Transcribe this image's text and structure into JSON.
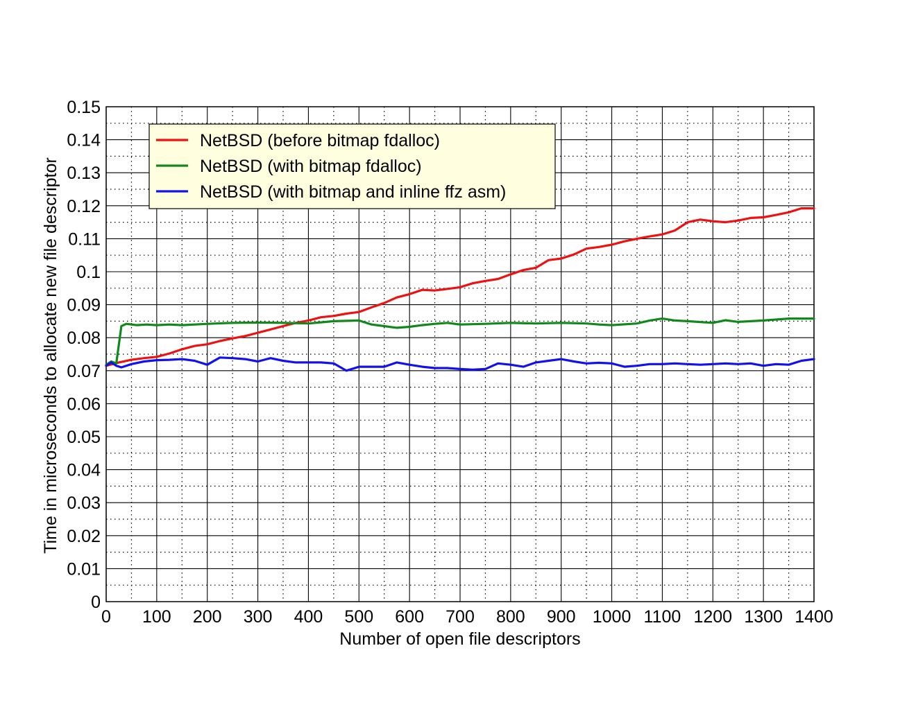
{
  "chart_data": {
    "type": "line",
    "title": "",
    "xlabel": "Number of open file descriptors",
    "ylabel": "Time in microseconds to allocate new file descriptor",
    "xlim": [
      0,
      1400
    ],
    "ylim": [
      0,
      0.15
    ],
    "xticks": [
      0,
      100,
      200,
      300,
      400,
      500,
      600,
      700,
      800,
      900,
      1000,
      1100,
      1200,
      1300,
      1400
    ],
    "xtick_labels": [
      "0",
      "100",
      "200",
      "300",
      "400",
      "500",
      "600",
      "700",
      "800",
      "900",
      "1000",
      "1100",
      "1200",
      "1300",
      "1400"
    ],
    "yticks": [
      0,
      0.01,
      0.02,
      0.03,
      0.04,
      0.05,
      0.06,
      0.07,
      0.08,
      0.09,
      0.1,
      0.11,
      0.12,
      0.13,
      0.14,
      0.15
    ],
    "ytick_labels": [
      "0",
      "0.01",
      "0.02",
      "0.03",
      "0.04",
      "0.05",
      "0.06",
      "0.07",
      "0.08",
      "0.09",
      "0.1",
      "0.11",
      "0.12",
      "0.13",
      "0.14",
      "0.15"
    ],
    "grid": true,
    "legend_position": "top-left",
    "series": [
      {
        "name": "NetBSD (before bitmap fdalloc)",
        "color": "#ee1111",
        "x": [
          0,
          25,
          50,
          75,
          100,
          125,
          150,
          175,
          200,
          225,
          250,
          275,
          300,
          325,
          350,
          375,
          400,
          425,
          450,
          475,
          500,
          525,
          550,
          575,
          600,
          625,
          650,
          675,
          700,
          725,
          750,
          775,
          800,
          825,
          850,
          875,
          900,
          925,
          950,
          975,
          1000,
          1025,
          1050,
          1075,
          1100,
          1125,
          1150,
          1175,
          1200,
          1225,
          1250,
          1275,
          1300,
          1325,
          1350,
          1375,
          1400
        ],
        "y": [
          0.0715,
          0.0725,
          0.0733,
          0.0738,
          0.0742,
          0.0752,
          0.0765,
          0.0775,
          0.078,
          0.079,
          0.0798,
          0.0805,
          0.0815,
          0.0825,
          0.0835,
          0.0845,
          0.0852,
          0.0862,
          0.0866,
          0.0873,
          0.0878,
          0.0892,
          0.0905,
          0.0922,
          0.0932,
          0.0945,
          0.0943,
          0.0948,
          0.0953,
          0.0965,
          0.0972,
          0.0978,
          0.0992,
          0.1005,
          0.1012,
          0.1035,
          0.104,
          0.1052,
          0.107,
          0.1075,
          0.1082,
          0.1092,
          0.11,
          0.1107,
          0.1113,
          0.1125,
          0.115,
          0.1158,
          0.1153,
          0.115,
          0.1155,
          0.1163,
          0.1165,
          0.1172,
          0.118,
          0.1192,
          0.1192
        ]
      },
      {
        "name": "NetBSD (with bitmap fdalloc)",
        "color": "#11881a",
        "x": [
          0,
          10,
          20,
          30,
          40,
          60,
          80,
          100,
          125,
          150,
          175,
          200,
          250,
          300,
          350,
          400,
          450,
          500,
          525,
          550,
          575,
          600,
          625,
          650,
          675,
          700,
          750,
          800,
          850,
          900,
          950,
          975,
          1000,
          1050,
          1075,
          1100,
          1125,
          1150,
          1200,
          1225,
          1250,
          1300,
          1350,
          1400
        ],
        "y": [
          0.0718,
          0.0728,
          0.0722,
          0.0835,
          0.0842,
          0.0838,
          0.084,
          0.0838,
          0.084,
          0.0838,
          0.084,
          0.0842,
          0.0845,
          0.0846,
          0.0845,
          0.0843,
          0.085,
          0.0852,
          0.084,
          0.0835,
          0.083,
          0.0833,
          0.0838,
          0.0842,
          0.0845,
          0.084,
          0.0842,
          0.0845,
          0.0843,
          0.0845,
          0.0843,
          0.084,
          0.0838,
          0.0843,
          0.0852,
          0.0858,
          0.0852,
          0.085,
          0.0845,
          0.0853,
          0.0848,
          0.0852,
          0.0858,
          0.0858
        ]
      },
      {
        "name": "NetBSD (with bitmap and inline ffz asm)",
        "color": "#1111ee",
        "x": [
          0,
          10,
          20,
          30,
          50,
          75,
          100,
          125,
          150,
          175,
          200,
          225,
          250,
          275,
          300,
          325,
          350,
          375,
          400,
          425,
          450,
          475,
          500,
          525,
          550,
          575,
          600,
          625,
          650,
          675,
          700,
          725,
          750,
          775,
          800,
          825,
          850,
          875,
          900,
          925,
          950,
          975,
          1000,
          1025,
          1050,
          1075,
          1100,
          1125,
          1150,
          1175,
          1200,
          1225,
          1250,
          1275,
          1300,
          1325,
          1350,
          1375,
          1400
        ],
        "y": [
          0.0715,
          0.0725,
          0.0715,
          0.071,
          0.072,
          0.0728,
          0.0732,
          0.0733,
          0.0735,
          0.073,
          0.0718,
          0.074,
          0.0738,
          0.0735,
          0.0728,
          0.0738,
          0.073,
          0.0725,
          0.0725,
          0.0725,
          0.0722,
          0.07,
          0.0712,
          0.0712,
          0.0712,
          0.0725,
          0.0718,
          0.0712,
          0.0708,
          0.0708,
          0.0705,
          0.0703,
          0.0705,
          0.0722,
          0.0718,
          0.0712,
          0.0725,
          0.073,
          0.0735,
          0.0728,
          0.0722,
          0.0724,
          0.0722,
          0.0712,
          0.0715,
          0.072,
          0.072,
          0.0722,
          0.072,
          0.0718,
          0.072,
          0.0722,
          0.072,
          0.0722,
          0.0715,
          0.072,
          0.0718,
          0.073,
          0.0735
        ]
      }
    ]
  }
}
